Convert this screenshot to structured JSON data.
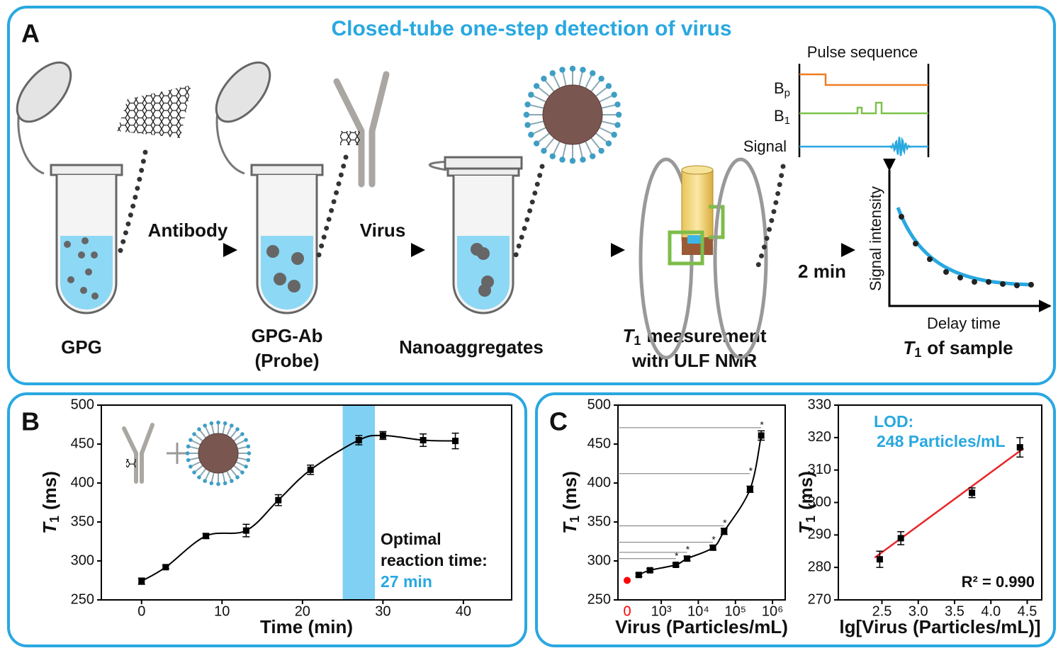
{
  "panel_labels": [
    "A",
    "B",
    "C"
  ],
  "panel_a": {
    "title": "Closed-tube one-step detection of virus",
    "arrow_labels": [
      "Antibody",
      "Virus",
      "2 min"
    ],
    "steps": [
      {
        "lines": [
          "GPG"
        ]
      },
      {
        "lines": [
          "GPG-Ab",
          "(Probe)"
        ]
      },
      {
        "lines": [
          "Nanoaggregates"
        ]
      }
    ],
    "measurement": {
      "symbol": "T",
      "subscript": "1",
      "rest": "measurement",
      "line2": "with ULF NMR"
    },
    "pulse_sequence": {
      "title": "Pulse sequence",
      "channels": [
        {
          "symbol": "B",
          "subscript": "p"
        },
        {
          "symbol": "B",
          "subscript": "1"
        },
        {
          "symbol": "Signal"
        }
      ]
    },
    "relaxation_plot": {
      "y_label": "Signal intensity",
      "x_label": "Delay time",
      "caption": {
        "symbol": "T",
        "subscript": "1",
        "rest": "of sample"
      }
    }
  },
  "chart_data": [
    {
      "type": "line",
      "x_label": "Time (min)",
      "y_label": {
        "symbol": "T",
        "subscript": "1",
        "unit": "(ms)"
      },
      "x": [
        0,
        3,
        8,
        13,
        17,
        21,
        27,
        30,
        35,
        39
      ],
      "series": [
        {
          "values": [
            274,
            292,
            332,
            339,
            378,
            417,
            455,
            461,
            455,
            454
          ],
          "errors": [
            4,
            2,
            3,
            8,
            7,
            6,
            6,
            5,
            8,
            10
          ],
          "color": "#000000"
        }
      ],
      "xlim": [
        -5,
        46
      ],
      "ylim": [
        250,
        500
      ],
      "xticks": [
        0,
        10,
        20,
        30,
        40
      ],
      "yticks": [
        250,
        300,
        350,
        400,
        450,
        500
      ],
      "highlight": {
        "xrange": [
          25,
          29
        ],
        "color": "#7fd0f2"
      },
      "annotation": {
        "lines": [
          "Optimal",
          "reaction time:"
        ],
        "emphasis": "27 min",
        "emphasis_color": "#29a8e0"
      }
    },
    {
      "type": "line",
      "log_x": true,
      "x_label": "Virus (Particles/mL)",
      "y_label": {
        "symbol": "T",
        "subscript": "1",
        "unit": "(ms)"
      },
      "x": [
        248,
        496,
        2480,
        4960,
        24800,
        49600,
        248000,
        496000
      ],
      "series": [
        {
          "values": [
            282,
            288,
            295,
            303,
            317,
            338,
            392,
            461
          ],
          "errors": [
            2,
            2,
            2,
            3,
            3,
            4,
            4,
            6
          ],
          "color": "#000000"
        }
      ],
      "control": {
        "label": "0",
        "value": 275,
        "color": "#ff0000"
      },
      "thresholds": {
        "values": [
          303,
          311,
          324,
          345,
          412,
          471
        ],
        "marker": "*"
      },
      "xlim": [
        68,
        2200000
      ],
      "ylim": [
        250,
        500
      ],
      "xticks": [
        {
          "value": 1000,
          "label": "10³"
        },
        {
          "value": 10000,
          "label": "10⁴"
        },
        {
          "value": 100000,
          "label": "10⁵"
        },
        {
          "value": 1000000,
          "label": "10⁶"
        }
      ],
      "yticks": [
        250,
        300,
        350,
        400,
        450,
        500
      ]
    },
    {
      "type": "scatter",
      "x_label": "lg[Virus (Particles/mL)]",
      "y_label": {
        "symbol": "T",
        "subscript": "1",
        "unit": "(ms)"
      },
      "x": [
        2.47,
        2.76,
        3.74,
        4.4
      ],
      "series": [
        {
          "values": [
            282.5,
            289,
            303,
            317
          ],
          "errors": [
            2.5,
            2,
            1.5,
            3
          ],
          "color": "#000000"
        }
      ],
      "fit": {
        "x": [
          2.4,
          4.45
        ],
        "y": [
          283,
          316.7
        ],
        "color": "#e8262a"
      },
      "xlim": [
        1.9,
        4.7
      ],
      "ylim": [
        270,
        330
      ],
      "xticks": [
        2.5,
        {
          "value": 3,
          "label": "3.0"
        },
        3.5,
        {
          "value": 4,
          "label": "4.0"
        },
        4.5
      ],
      "yticks": [
        270,
        280,
        290,
        300,
        310,
        320,
        330
      ],
      "lod": {
        "lines": [
          "LOD:",
          "248 Particles/mL"
        ],
        "color": "#29a8e0"
      },
      "r_squared": "R² = 0.990"
    }
  ]
}
